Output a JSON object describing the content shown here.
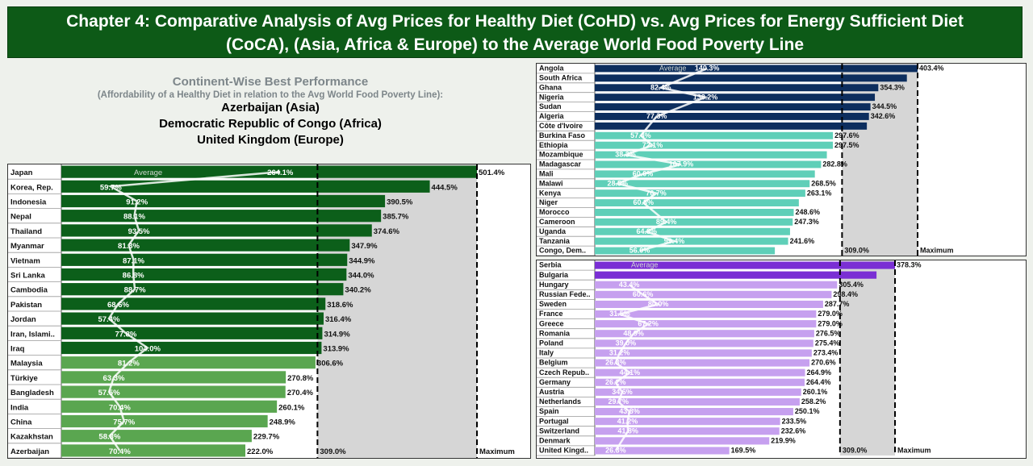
{
  "header": {
    "line1": "Chapter 4: Comparative Analysis of Avg Prices for Healthy Diet (CoHD) vs. Avg Prices for Energy Sufficient Diet",
    "line2": "(CoCA), (Asia, Africa & Europe) to the Average World Food Poverty Line"
  },
  "best": {
    "title": "Continent-Wise Best Performance",
    "subtitle": "(Affordability of a Healthy Diet in relation to the Avg World Food Poverty Line):",
    "winners": [
      "Azerbaijan (Asia)",
      "Democratic Republic of Congo (Africa)",
      "United Kingdom (Europe)"
    ]
  },
  "colors": {
    "header": "#0d5a17",
    "asia_dark": "#0c5f1a",
    "asia_light": "#5aa650",
    "africa_dark": "#0d2e5e",
    "africa_light": "#5fcfb8",
    "europe_dark": "#7a2fd4",
    "europe_light": "#c6a0ef",
    "max_bg": "#d6d6d6"
  },
  "chart_data": [
    {
      "type": "bar",
      "region": "Asia",
      "categories": [
        "Japan",
        "Korea, Rep.",
        "Indonesia",
        "Nepal",
        "Thailand",
        "Myanmar",
        "Vietnam",
        "Sri Lanka",
        "Cambodia",
        "Pakistan",
        "Jordan",
        "Iran, Islami..",
        "Iraq",
        "Malaysia",
        "Türkiye",
        "Bangladesh",
        "India",
        "China",
        "Kazakhstan",
        "Azerbaijan"
      ],
      "values": [
        501.4,
        444.5,
        390.5,
        385.7,
        374.6,
        347.9,
        344.9,
        344.0,
        340.2,
        318.6,
        316.4,
        314.9,
        313.9,
        306.6,
        270.8,
        270.4,
        260.1,
        248.9,
        229.7,
        222.0
      ],
      "value_labels": [
        "501.4%",
        "444.5%",
        "390.5%",
        "385.7%",
        "374.6%",
        "347.9%",
        "344.9%",
        "344.0%",
        "340.2%",
        "318.6%",
        "316.4%",
        "314.9%",
        "313.9%",
        "306.6%",
        "270.8%",
        "270.4%",
        "260.1%",
        "248.9%",
        "229.7%",
        "222.0%"
      ],
      "line_values": [
        264.1,
        59.7,
        91.2,
        88.1,
        93.5,
        81.3,
        87.1,
        86.8,
        88.7,
        68.6,
        57.4,
        77.8,
        104.0,
        81.2,
        63.3,
        57.5,
        70.4,
        75.7,
        58.3,
        70.4
      ],
      "line_labels": [
        "264.1%",
        "59.7%",
        "91.2%",
        "88.1%",
        "93.5%",
        "81.3%",
        "87.1%",
        "86.8%",
        "88.7%",
        "68.6%",
        "57.4%",
        "77.8%",
        "104.0%",
        "81.2%",
        "63.3%",
        "57.5%",
        "70.4%",
        "75.7%",
        "58.3%",
        "70.4%"
      ],
      "average_label": "Average",
      "reference_value": 309.0,
      "reference_label": "309.0%",
      "max_value": 501.4,
      "max_label": "Maximum"
    },
    {
      "type": "bar",
      "region": "Africa",
      "categories": [
        "Angola",
        "South Africa",
        "Ghana",
        "Nigeria",
        "Sudan",
        "Algeria",
        "Côte d'Ivoire",
        "Burkina Faso",
        "Ethiopia",
        "Mozambique",
        "Madagascar",
        "Mali",
        "Malawi",
        "Kenya",
        "Niger",
        "Morocco",
        "Cameroon",
        "Uganda",
        "Tanzania",
        "Congo, Dem.."
      ],
      "values": [
        403.4,
        390.0,
        354.3,
        350.0,
        344.5,
        342.6,
        340.0,
        297.6,
        297.5,
        290.0,
        282.8,
        275.0,
        268.5,
        263.1,
        255.0,
        248.6,
        247.3,
        244.0,
        241.6,
        225.0
      ],
      "value_labels": [
        "403.4%",
        "",
        "354.3%",
        "",
        "344.5%",
        "342.6%",
        "",
        "297.6%",
        "297.5%",
        "",
        "282.8%",
        "",
        "268.5%",
        "263.1%",
        "",
        "248.6%",
        "247.3%",
        "",
        "241.6%",
        ""
      ],
      "line_values": [
        140.3,
        null,
        82.4,
        138.2,
        null,
        77.3,
        null,
        57.4,
        72.1,
        38.3,
        107.9,
        60.0,
        28.5,
        76.7,
        60.8,
        null,
        89.4,
        64.8,
        99.4,
        56.0
      ],
      "line_labels": [
        "140.3%",
        "",
        "82.4%",
        "138.2%",
        "",
        "77.3%",
        "",
        "57.4%",
        "72.1%",
        "38.3%",
        "107.9%",
        "60.0%",
        "28.5%",
        "76.7%",
        "60.8%",
        "",
        "89.4%",
        "64.8%",
        "99.4%",
        "56.0%"
      ],
      "average_label": "Average",
      "reference_value": 309.0,
      "reference_label": "309.0%",
      "max_value": 403.4,
      "max_label": "Maximum"
    },
    {
      "type": "bar",
      "region": "Europe",
      "categories": [
        "Serbia",
        "Bulgaria",
        "Hungary",
        "Russian Fede..",
        "Sweden",
        "France",
        "Greece",
        "Romania",
        "Poland",
        "Italy",
        "Belgium",
        "Czech Repub..",
        "Germany",
        "Austria",
        "Netherlands",
        "Spain",
        "Portugal",
        "Switzerland",
        "Denmark",
        "United Kingd.."
      ],
      "values": [
        378.3,
        355.0,
        305.4,
        298.4,
        287.7,
        279.0,
        279.0,
        276.5,
        275.4,
        273.4,
        270.6,
        264.9,
        264.4,
        260.1,
        258.2,
        250.1,
        233.5,
        232.6,
        219.9,
        169.5
      ],
      "value_labels": [
        "378.3%",
        "",
        "305.4%",
        "298.4%",
        "287.7%",
        "279.0%",
        "279.0%",
        "276.5%",
        "275.4%",
        "273.4%",
        "270.6%",
        "264.9%",
        "264.4%",
        "260.1%",
        "258.2%",
        "250.1%",
        "233.5%",
        "232.6%",
        "219.9%",
        "169.5%"
      ],
      "line_values": [
        null,
        null,
        43.4,
        60.6,
        80.0,
        31.5,
        67.2,
        48.9,
        39.0,
        31.2,
        26.3,
        44.1,
        26.2,
        34.6,
        29.7,
        43.8,
        41.2,
        41.8,
        null,
        26.3
      ],
      "line_labels": [
        "",
        "",
        "43.4%",
        "60.6%",
        "80.0%",
        "31.5%",
        "67.2%",
        "48.9%",
        "39.0%",
        "31.2%",
        "26.3%",
        "44.1%",
        "26.2%",
        "34.6%",
        "29.7%",
        "43.8%",
        "41.2%",
        "41.8%",
        "",
        "26.3%"
      ],
      "average_label": "Average",
      "reference_value": 309.0,
      "reference_label": "309.0%",
      "max_value": 378.3,
      "max_label": "Maximum"
    }
  ]
}
